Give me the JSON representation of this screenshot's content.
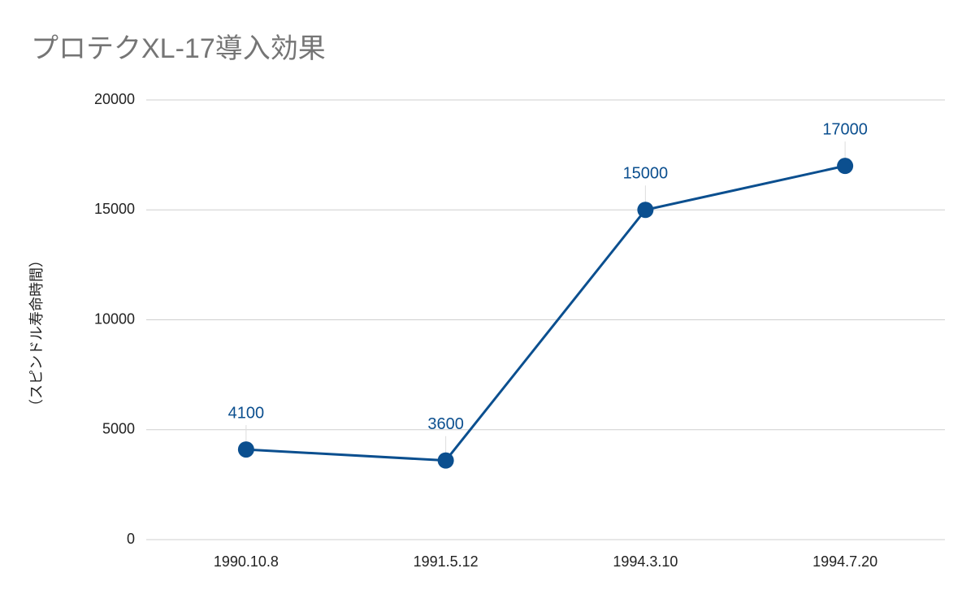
{
  "chart_data": {
    "type": "line",
    "title": "プロテクXL-17導入効果",
    "y_label": "（スピンドル寿命時間）",
    "categories": [
      "1990.10.8",
      "1991.5.12",
      "1994.3.10",
      "1994.7.20"
    ],
    "values": [
      4100,
      3600,
      15000,
      17000
    ],
    "color": "#0b4f8f",
    "ylim": [
      0,
      20000
    ],
    "yticks": [
      0,
      5000,
      10000,
      15000,
      20000
    ],
    "grid": true
  }
}
